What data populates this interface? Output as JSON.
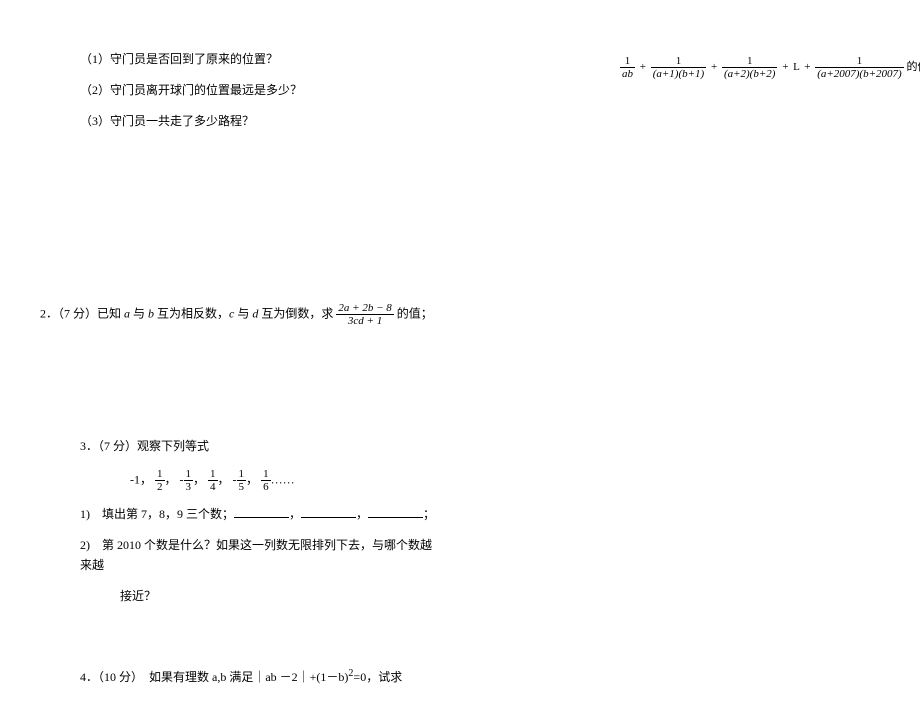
{
  "q1": {
    "sub1": "（1）守门员是否回到了原来的位置？",
    "sub2": "（2）守门员离开球门的位置最远是多少？",
    "sub3": "（3）守门员一共走了多少路程？"
  },
  "q2": {
    "prefix": "2．（7 分）已知 ",
    "mid1": " 与 ",
    "mid2": " 互为相反数，",
    "mid3": " 与 ",
    "mid4": " 互为倒数，求 ",
    "suffix": " 的值；",
    "a": "a",
    "b": "b",
    "c": "c",
    "d": "d",
    "frac_num": "2a + 2b − 8",
    "frac_den": "3cd + 1"
  },
  "q3": {
    "title": "3．（7 分）观察下列等式",
    "seq_lead": "-1，",
    "f1n": "1",
    "f1d": "2",
    "f2n": "1",
    "f2d": "3",
    "f3n": "1",
    "f3d": "4",
    "f4n": "1",
    "f4d": "5",
    "f5n": "1",
    "f5d": "6",
    "comma": "，",
    "neg": "-",
    "dots": "……",
    "sub1_a": "1)　填出第 7，8，9 三个数；",
    "sub1_b": "，",
    "sub1_c": "，",
    "sub1_d": "；",
    "sub2": "2)　第 2010 个数是什么？如果这一列数无限排列下去，与哪个数越来越",
    "sub2b": "接近？"
  },
  "q4": {
    "prefix": "4．（10 分）　如果有理数 a,b 满足｜ab －2｜+(1－b)",
    "sup": "2",
    "suffix": "=0，试求"
  },
  "right": {
    "t1n": "1",
    "t1d": "ab",
    "t2n": "1",
    "t2d": "(a+1)(b+1)",
    "t3n": "1",
    "t3d": "(a+2)(b+2)",
    "L": "L",
    "t4n": "1",
    "t4d": "(a+2007)(b+2007)",
    "plus": "+",
    "suffix": " 的值。"
  }
}
